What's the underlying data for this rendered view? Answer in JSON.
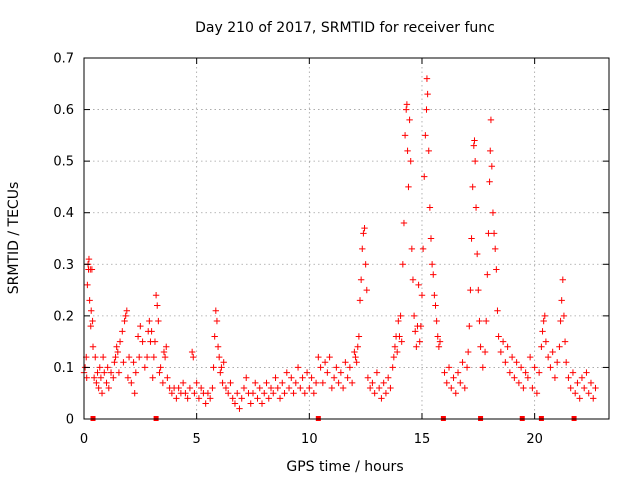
{
  "chart_data": {
    "type": "scatter",
    "title": "Day 210 of 2017, SRMTID for receiver func",
    "xlabel": "GPS time / hours",
    "ylabel": "SRMTID / TECUs",
    "xlim": [
      0,
      23.3
    ],
    "ylim": [
      0,
      0.7
    ],
    "xticks": [
      0,
      5,
      10,
      15,
      20
    ],
    "xtick_labels": [
      "0",
      "5",
      "10",
      "15",
      "20"
    ],
    "yticks": [
      0,
      0.1,
      0.2,
      0.3,
      0.4,
      0.5,
      0.6,
      0.7
    ],
    "ytick_labels": [
      "0",
      "0.1",
      "0.2",
      "0.3",
      "0.4",
      "0.5",
      "0.6",
      "0.7"
    ],
    "grid": true,
    "marker": "+",
    "color": "#ff0000",
    "gap_markers_x": [
      0.4,
      3.2,
      10.4,
      15.95,
      17.6,
      19.45,
      20.3,
      21.75
    ],
    "series": [
      {
        "name": "SRMTID",
        "points": [
          [
            0.0,
            0.09
          ],
          [
            0.05,
            0.1
          ],
          [
            0.1,
            0.12
          ],
          [
            0.12,
            0.08
          ],
          [
            0.15,
            0.26
          ],
          [
            0.18,
            0.3
          ],
          [
            0.2,
            0.29
          ],
          [
            0.22,
            0.31
          ],
          [
            0.25,
            0.23
          ],
          [
            0.28,
            0.29
          ],
          [
            0.3,
            0.18
          ],
          [
            0.32,
            0.21
          ],
          [
            0.35,
            0.29
          ],
          [
            0.38,
            0.19
          ],
          [
            0.4,
            0.14
          ],
          [
            0.45,
            0.08
          ],
          [
            0.5,
            0.12
          ],
          [
            0.55,
            0.07
          ],
          [
            0.6,
            0.09
          ],
          [
            0.65,
            0.06
          ],
          [
            0.7,
            0.1
          ],
          [
            0.75,
            0.08
          ],
          [
            0.8,
            0.05
          ],
          [
            0.85,
            0.12
          ],
          [
            0.9,
            0.09
          ],
          [
            1.0,
            0.07
          ],
          [
            1.05,
            0.1
          ],
          [
            1.1,
            0.06
          ],
          [
            1.2,
            0.09
          ],
          [
            1.3,
            0.08
          ],
          [
            1.35,
            0.11
          ],
          [
            1.4,
            0.12
          ],
          [
            1.45,
            0.14
          ],
          [
            1.5,
            0.13
          ],
          [
            1.55,
            0.09
          ],
          [
            1.6,
            0.15
          ],
          [
            1.7,
            0.17
          ],
          [
            1.75,
            0.11
          ],
          [
            1.8,
            0.19
          ],
          [
            1.85,
            0.2
          ],
          [
            1.9,
            0.21
          ],
          [
            1.95,
            0.08
          ],
          [
            2.0,
            0.12
          ],
          [
            2.1,
            0.07
          ],
          [
            2.2,
            0.11
          ],
          [
            2.25,
            0.05
          ],
          [
            2.3,
            0.09
          ],
          [
            2.4,
            0.16
          ],
          [
            2.45,
            0.12
          ],
          [
            2.5,
            0.18
          ],
          [
            2.6,
            0.15
          ],
          [
            2.7,
            0.1
          ],
          [
            2.8,
            0.12
          ],
          [
            2.85,
            0.17
          ],
          [
            2.9,
            0.19
          ],
          [
            2.95,
            0.15
          ],
          [
            3.0,
            0.17
          ],
          [
            3.05,
            0.08
          ],
          [
            3.1,
            0.12
          ],
          [
            3.15,
            0.15
          ],
          [
            3.2,
            0.24
          ],
          [
            3.25,
            0.22
          ],
          [
            3.3,
            0.19
          ],
          [
            3.35,
            0.09
          ],
          [
            3.4,
            0.1
          ],
          [
            3.5,
            0.07
          ],
          [
            3.55,
            0.13
          ],
          [
            3.6,
            0.12
          ],
          [
            3.65,
            0.14
          ],
          [
            3.7,
            0.08
          ],
          [
            3.8,
            0.06
          ],
          [
            3.9,
            0.05
          ],
          [
            4.0,
            0.06
          ],
          [
            4.1,
            0.04
          ],
          [
            4.2,
            0.06
          ],
          [
            4.3,
            0.05
          ],
          [
            4.4,
            0.07
          ],
          [
            4.5,
            0.05
          ],
          [
            4.6,
            0.04
          ],
          [
            4.7,
            0.06
          ],
          [
            4.8,
            0.13
          ],
          [
            4.85,
            0.12
          ],
          [
            4.9,
            0.05
          ],
          [
            5.0,
            0.07
          ],
          [
            5.1,
            0.04
          ],
          [
            5.2,
            0.06
          ],
          [
            5.3,
            0.05
          ],
          [
            5.4,
            0.03
          ],
          [
            5.5,
            0.05
          ],
          [
            5.6,
            0.04
          ],
          [
            5.7,
            0.06
          ],
          [
            5.75,
            0.1
          ],
          [
            5.8,
            0.16
          ],
          [
            5.85,
            0.21
          ],
          [
            5.9,
            0.19
          ],
          [
            5.95,
            0.14
          ],
          [
            6.0,
            0.12
          ],
          [
            6.05,
            0.09
          ],
          [
            6.1,
            0.1
          ],
          [
            6.15,
            0.07
          ],
          [
            6.2,
            0.11
          ],
          [
            6.3,
            0.06
          ],
          [
            6.4,
            0.05
          ],
          [
            6.5,
            0.07
          ],
          [
            6.6,
            0.04
          ],
          [
            6.7,
            0.03
          ],
          [
            6.8,
            0.05
          ],
          [
            6.9,
            0.02
          ],
          [
            7.0,
            0.04
          ],
          [
            7.1,
            0.06
          ],
          [
            7.2,
            0.08
          ],
          [
            7.3,
            0.05
          ],
          [
            7.4,
            0.03
          ],
          [
            7.5,
            0.05
          ],
          [
            7.6,
            0.07
          ],
          [
            7.7,
            0.04
          ],
          [
            7.8,
            0.06
          ],
          [
            7.9,
            0.03
          ],
          [
            8.0,
            0.05
          ],
          [
            8.1,
            0.07
          ],
          [
            8.2,
            0.04
          ],
          [
            8.3,
            0.06
          ],
          [
            8.4,
            0.05
          ],
          [
            8.5,
            0.08
          ],
          [
            8.6,
            0.06
          ],
          [
            8.7,
            0.04
          ],
          [
            8.8,
            0.07
          ],
          [
            8.9,
            0.05
          ],
          [
            9.0,
            0.09
          ],
          [
            9.1,
            0.06
          ],
          [
            9.2,
            0.08
          ],
          [
            9.3,
            0.05
          ],
          [
            9.4,
            0.07
          ],
          [
            9.5,
            0.1
          ],
          [
            9.6,
            0.06
          ],
          [
            9.7,
            0.08
          ],
          [
            9.8,
            0.05
          ],
          [
            9.9,
            0.09
          ],
          [
            10.0,
            0.06
          ],
          [
            10.1,
            0.08
          ],
          [
            10.2,
            0.05
          ],
          [
            10.3,
            0.07
          ],
          [
            10.4,
            0.12
          ],
          [
            10.5,
            0.1
          ],
          [
            10.6,
            0.07
          ],
          [
            10.7,
            0.11
          ],
          [
            10.8,
            0.09
          ],
          [
            10.9,
            0.12
          ],
          [
            11.0,
            0.06
          ],
          [
            11.1,
            0.08
          ],
          [
            11.2,
            0.1
          ],
          [
            11.3,
            0.07
          ],
          [
            11.4,
            0.09
          ],
          [
            11.5,
            0.06
          ],
          [
            11.6,
            0.11
          ],
          [
            11.7,
            0.08
          ],
          [
            11.8,
            0.1
          ],
          [
            11.9,
            0.07
          ],
          [
            12.0,
            0.13
          ],
          [
            12.05,
            0.12
          ],
          [
            12.1,
            0.11
          ],
          [
            12.15,
            0.14
          ],
          [
            12.2,
            0.16
          ],
          [
            12.25,
            0.23
          ],
          [
            12.3,
            0.27
          ],
          [
            12.35,
            0.33
          ],
          [
            12.4,
            0.36
          ],
          [
            12.45,
            0.37
          ],
          [
            12.5,
            0.3
          ],
          [
            12.55,
            0.25
          ],
          [
            12.6,
            0.08
          ],
          [
            12.7,
            0.06
          ],
          [
            12.8,
            0.07
          ],
          [
            12.9,
            0.05
          ],
          [
            13.0,
            0.09
          ],
          [
            13.1,
            0.06
          ],
          [
            13.2,
            0.04
          ],
          [
            13.3,
            0.07
          ],
          [
            13.4,
            0.05
          ],
          [
            13.5,
            0.08
          ],
          [
            13.6,
            0.06
          ],
          [
            13.7,
            0.1
          ],
          [
            13.75,
            0.12
          ],
          [
            13.8,
            0.14
          ],
          [
            13.85,
            0.16
          ],
          [
            13.9,
            0.13
          ],
          [
            13.95,
            0.19
          ],
          [
            14.0,
            0.16
          ],
          [
            14.05,
            0.2
          ],
          [
            14.1,
            0.15
          ],
          [
            14.15,
            0.3
          ],
          [
            14.2,
            0.38
          ],
          [
            14.25,
            0.55
          ],
          [
            14.3,
            0.6
          ],
          [
            14.33,
            0.61
          ],
          [
            14.36,
            0.52
          ],
          [
            14.4,
            0.45
          ],
          [
            14.45,
            0.58
          ],
          [
            14.5,
            0.5
          ],
          [
            14.55,
            0.33
          ],
          [
            14.6,
            0.27
          ],
          [
            14.65,
            0.2
          ],
          [
            14.7,
            0.17
          ],
          [
            14.75,
            0.14
          ],
          [
            14.8,
            0.18
          ],
          [
            14.85,
            0.26
          ],
          [
            14.9,
            0.15
          ],
          [
            14.95,
            0.18
          ],
          [
            15.0,
            0.24
          ],
          [
            15.05,
            0.33
          ],
          [
            15.1,
            0.47
          ],
          [
            15.15,
            0.55
          ],
          [
            15.2,
            0.6
          ],
          [
            15.22,
            0.66
          ],
          [
            15.25,
            0.63
          ],
          [
            15.3,
            0.52
          ],
          [
            15.35,
            0.41
          ],
          [
            15.4,
            0.35
          ],
          [
            15.45,
            0.3
          ],
          [
            15.5,
            0.28
          ],
          [
            15.55,
            0.24
          ],
          [
            15.6,
            0.22
          ],
          [
            15.65,
            0.19
          ],
          [
            15.7,
            0.16
          ],
          [
            15.75,
            0.14
          ],
          [
            15.8,
            0.15
          ],
          [
            16.0,
            0.09
          ],
          [
            16.1,
            0.07
          ],
          [
            16.2,
            0.1
          ],
          [
            16.3,
            0.06
          ],
          [
            16.4,
            0.08
          ],
          [
            16.5,
            0.05
          ],
          [
            16.6,
            0.09
          ],
          [
            16.7,
            0.07
          ],
          [
            16.8,
            0.11
          ],
          [
            16.9,
            0.06
          ],
          [
            17.0,
            0.1
          ],
          [
            17.05,
            0.13
          ],
          [
            17.1,
            0.18
          ],
          [
            17.15,
            0.25
          ],
          [
            17.2,
            0.35
          ],
          [
            17.25,
            0.45
          ],
          [
            17.3,
            0.53
          ],
          [
            17.33,
            0.54
          ],
          [
            17.36,
            0.5
          ],
          [
            17.4,
            0.41
          ],
          [
            17.45,
            0.32
          ],
          [
            17.5,
            0.25
          ],
          [
            17.55,
            0.19
          ],
          [
            17.6,
            0.14
          ],
          [
            17.7,
            0.1
          ],
          [
            17.8,
            0.13
          ],
          [
            17.85,
            0.19
          ],
          [
            17.9,
            0.28
          ],
          [
            17.95,
            0.36
          ],
          [
            18.0,
            0.46
          ],
          [
            18.03,
            0.52
          ],
          [
            18.06,
            0.58
          ],
          [
            18.1,
            0.49
          ],
          [
            18.15,
            0.4
          ],
          [
            18.2,
            0.36
          ],
          [
            18.25,
            0.33
          ],
          [
            18.3,
            0.29
          ],
          [
            18.35,
            0.21
          ],
          [
            18.4,
            0.16
          ],
          [
            18.5,
            0.13
          ],
          [
            18.6,
            0.15
          ],
          [
            18.7,
            0.11
          ],
          [
            18.8,
            0.14
          ],
          [
            18.9,
            0.09
          ],
          [
            19.0,
            0.12
          ],
          [
            19.1,
            0.08
          ],
          [
            19.2,
            0.11
          ],
          [
            19.3,
            0.07
          ],
          [
            19.4,
            0.1
          ],
          [
            19.5,
            0.06
          ],
          [
            19.6,
            0.09
          ],
          [
            19.7,
            0.08
          ],
          [
            19.8,
            0.12
          ],
          [
            19.9,
            0.06
          ],
          [
            20.0,
            0.1
          ],
          [
            20.1,
            0.05
          ],
          [
            20.2,
            0.09
          ],
          [
            20.3,
            0.14
          ],
          [
            20.35,
            0.17
          ],
          [
            20.4,
            0.19
          ],
          [
            20.45,
            0.2
          ],
          [
            20.5,
            0.15
          ],
          [
            20.6,
            0.12
          ],
          [
            20.7,
            0.1
          ],
          [
            20.8,
            0.13
          ],
          [
            20.9,
            0.08
          ],
          [
            21.0,
            0.11
          ],
          [
            21.1,
            0.14
          ],
          [
            21.15,
            0.19
          ],
          [
            21.2,
            0.23
          ],
          [
            21.25,
            0.27
          ],
          [
            21.3,
            0.2
          ],
          [
            21.35,
            0.15
          ],
          [
            21.4,
            0.11
          ],
          [
            21.5,
            0.08
          ],
          [
            21.6,
            0.06
          ],
          [
            21.7,
            0.09
          ],
          [
            21.8,
            0.05
          ],
          [
            21.9,
            0.07
          ],
          [
            22.0,
            0.04
          ],
          [
            22.1,
            0.08
          ],
          [
            22.2,
            0.06
          ],
          [
            22.3,
            0.09
          ],
          [
            22.4,
            0.05
          ],
          [
            22.5,
            0.07
          ],
          [
            22.6,
            0.04
          ],
          [
            22.7,
            0.06
          ]
        ]
      }
    ]
  }
}
